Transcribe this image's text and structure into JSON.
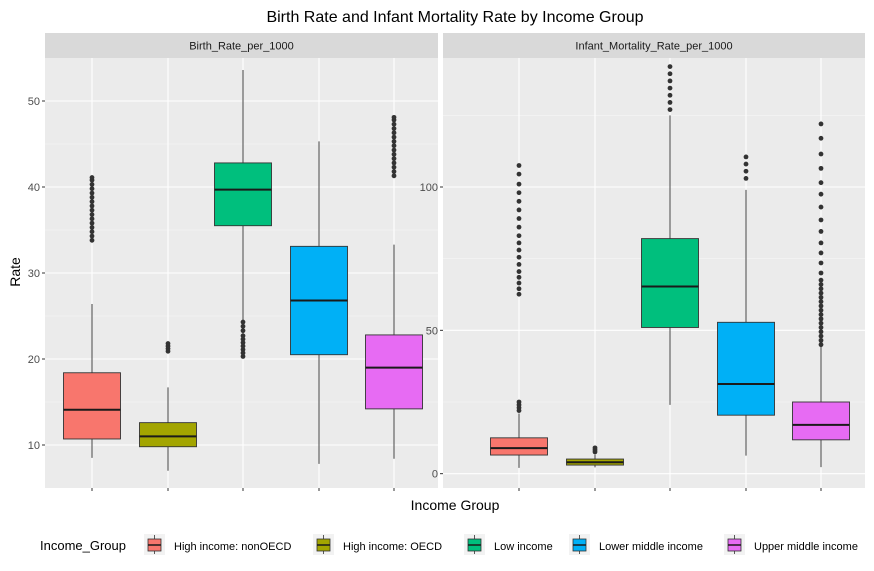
{
  "chart_data": {
    "type": "boxplot",
    "title": "Birth Rate and Infant Mortality Rate by Income Group",
    "xlabel": "Income Group",
    "ylabel": "Rate",
    "categories": [
      "High income: nonOECD",
      "High income: OECD",
      "Low income",
      "Lower middle income",
      "Upper middle income"
    ],
    "colors": {
      "High income: nonOECD": "#F8766D",
      "High income: OECD": "#A3A500",
      "Low income": "#00BF7D",
      "Lower middle income": "#00B0F6",
      "Upper middle income": "#E76BF3"
    },
    "legend": {
      "title": "Income_Group",
      "position": "bottom"
    },
    "panels": [
      {
        "strip": "Birth_Rate_per_1000",
        "ylim": [
          5,
          55
        ],
        "yticks": [
          10,
          20,
          30,
          40,
          50
        ],
        "boxes": [
          {
            "category": "High income: nonOECD",
            "lower": 8.5,
            "q1": 10.7,
            "median": 14.1,
            "q3": 18.4,
            "upper": 26.4,
            "outliers": [
              33.8,
              34.3,
              34.8,
              35.3,
              35.8,
              36.3,
              36.8,
              37.3,
              37.8,
              38.3,
              38.8,
              39.3,
              39.8,
              40.3,
              40.8,
              41.1
            ]
          },
          {
            "category": "High income: OECD",
            "lower": 7.0,
            "q1": 9.8,
            "median": 11.0,
            "q3": 12.6,
            "upper": 16.7,
            "outliers": [
              20.9,
              21.2,
              21.5,
              21.8
            ]
          },
          {
            "category": "Low income",
            "lower": 20.1,
            "q1": 35.5,
            "median": 39.7,
            "q3": 42.8,
            "upper": 53.6,
            "outliers": [
              20.3,
              20.7,
              21.1,
              21.5,
              21.9,
              22.3,
              22.7,
              23.3,
              23.8,
              24.3
            ]
          },
          {
            "category": "Lower middle income",
            "lower": 7.8,
            "q1": 20.5,
            "median": 26.8,
            "q3": 33.1,
            "upper": 45.3,
            "outliers": []
          },
          {
            "category": "Upper middle income",
            "lower": 8.4,
            "q1": 14.2,
            "median": 19.0,
            "q3": 22.8,
            "upper": 33.3,
            "outliers": [
              41.3,
              41.8,
              42.3,
              42.8,
              43.3,
              43.8,
              44.3,
              44.8,
              45.3,
              45.8,
              46.3,
              46.8,
              47.3,
              47.8,
              48.1
            ]
          }
        ]
      },
      {
        "strip": "Infant_Mortality_Rate_per_1000",
        "ylim": [
          -5,
          145
        ],
        "yticks": [
          0,
          50,
          100
        ],
        "boxes": [
          {
            "category": "High income: nonOECD",
            "lower": 2.0,
            "q1": 6.5,
            "median": 8.9,
            "q3": 12.5,
            "upper": 21.0,
            "outliers": [
              22.0,
              23.0,
              24.0,
              25.0,
              62.6,
              64.5,
              66.5,
              68.5,
              70.5,
              73.0,
              75.5,
              78.0,
              80.5,
              83.0,
              86.0,
              89.0,
              92.0,
              95.0,
              98.0,
              101.0,
              104.5,
              107.5
            ]
          },
          {
            "category": "High income: OECD",
            "lower": 2.2,
            "q1": 3.0,
            "median": 4.0,
            "q3": 5.1,
            "upper": 6.7,
            "outliers": [
              7.6,
              8.3,
              9.0
            ]
          },
          {
            "category": "Low income",
            "lower": 24.0,
            "q1": 51.0,
            "median": 65.3,
            "q3": 82.0,
            "upper": 125.0,
            "outliers": [
              127.0,
              129.5,
              132.0,
              134.5,
              137.0,
              139.5,
              142.0
            ]
          },
          {
            "category": "Lower middle income",
            "lower": 6.3,
            "q1": 20.4,
            "median": 31.3,
            "q3": 52.8,
            "upper": 99.0,
            "outliers": [
              103.0,
              105.5,
              108.0,
              110.5
            ]
          },
          {
            "category": "Upper middle income",
            "lower": 2.3,
            "q1": 11.8,
            "median": 17.0,
            "q3": 25.0,
            "upper": 44.5,
            "outliers": [
              45.0,
              46.5,
              48.0,
              49.5,
              51.0,
              52.5,
              54.0,
              55.5,
              57.0,
              58.5,
              60.0,
              61.5,
              63.0,
              64.5,
              66.0,
              67.5,
              70.0,
              73.5,
              77.0,
              80.5,
              84.5,
              88.5,
              93.0,
              97.5,
              101.5,
              106.5,
              111.5,
              117.0,
              122.0
            ]
          }
        ]
      }
    ]
  }
}
